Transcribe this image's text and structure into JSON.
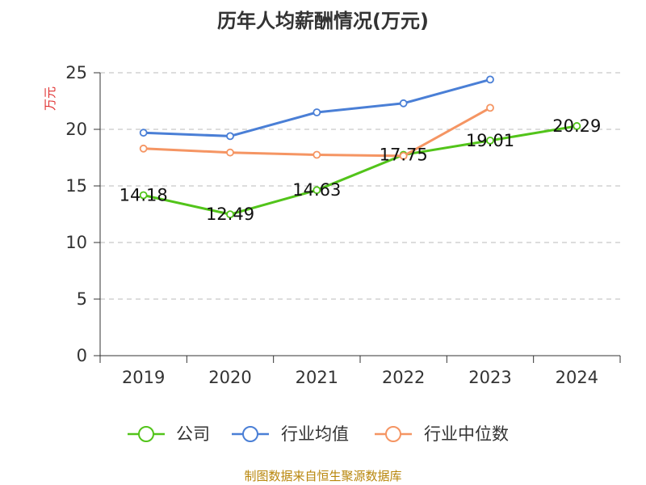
{
  "chart_data": {
    "type": "line",
    "title": "历年人均薪酬情况(万元)",
    "ylabel": "万元",
    "categories": [
      "2019",
      "2020",
      "2021",
      "2022",
      "2023",
      "2024"
    ],
    "ylim": [
      0,
      25
    ],
    "yticks": [
      0,
      5,
      10,
      15,
      20,
      25
    ],
    "grid": true,
    "legend_position": "bottom",
    "series": [
      {
        "name": "公司",
        "color": "#52c41a",
        "values": [
          14.18,
          12.49,
          14.63,
          17.75,
          19.01,
          20.29
        ],
        "labels": [
          "14.18",
          "12.49",
          "14.63",
          "17.75",
          "19.01",
          "20.29"
        ]
      },
      {
        "name": "行业均值",
        "color": "#4a7fd6",
        "values": [
          19.7,
          19.4,
          21.5,
          22.3,
          24.4,
          null
        ]
      },
      {
        "name": "行业中位数",
        "color": "#f59563",
        "values": [
          18.3,
          17.95,
          17.75,
          17.65,
          21.9,
          null
        ]
      }
    ],
    "ylabel_color": "#e03030"
  },
  "source": {
    "text": "制图数据来自恒生聚源数据库",
    "color": "#b8860b"
  }
}
